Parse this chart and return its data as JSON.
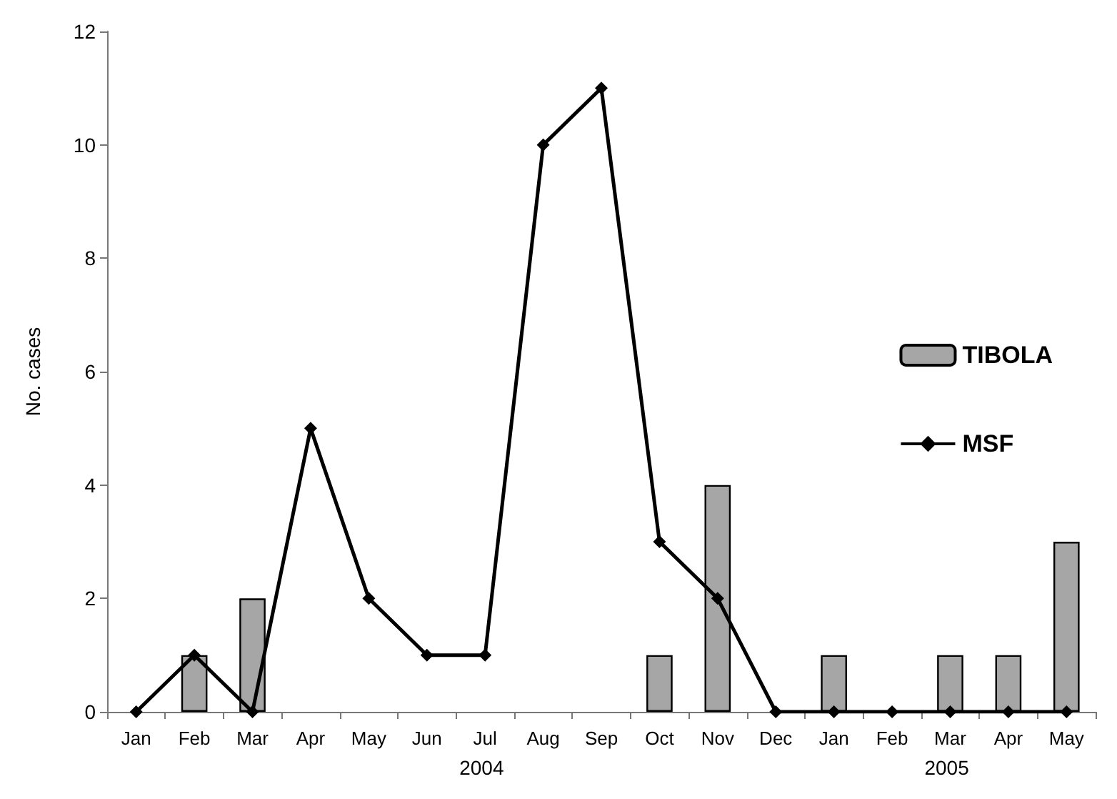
{
  "chart_data": {
    "type": "bar",
    "ylabel": "No. cases",
    "categories": [
      "Jan",
      "Feb",
      "Mar",
      "Apr",
      "May",
      "Jun",
      "Jul",
      "Aug",
      "Sep",
      "Oct",
      "Nov",
      "Dec",
      "Jan",
      "Feb",
      "Mar",
      "Apr",
      "May"
    ],
    "series": [
      {
        "name": "TIBOLA",
        "color": "#a6a6a6",
        "values": [
          null,
          1,
          2,
          null,
          null,
          null,
          null,
          null,
          null,
          1,
          4,
          null,
          1,
          null,
          1,
          1,
          3
        ]
      },
      {
        "name": "MSF",
        "type": "line",
        "color": "#000000",
        "values": [
          0,
          1,
          0,
          5,
          2,
          1,
          1,
          10,
          11,
          3,
          2,
          0,
          0,
          0,
          0,
          0,
          0
        ]
      }
    ],
    "ylim": [
      0,
      12
    ],
    "yticks": [
      0,
      2,
      4,
      6,
      8,
      10,
      12
    ],
    "grid": false,
    "legend": "right",
    "marker": "diamond",
    "line_style": "solid",
    "annotations": [
      "2004",
      "2005"
    ]
  }
}
